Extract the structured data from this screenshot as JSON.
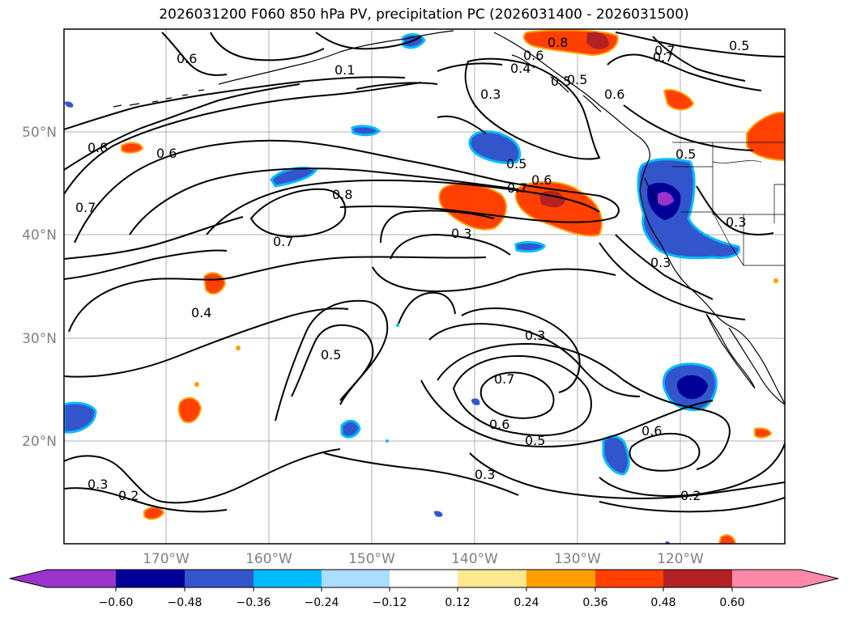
{
  "title": "2026031200 F060 850 hPa PV, precipitation PC (2026031400 - 2026031500)",
  "axes": {
    "lat_labels": [
      "50°N",
      "40°N",
      "30°N",
      "20°N"
    ],
    "lon_labels": [
      "170°W",
      "160°W",
      "150°W",
      "140°W",
      "130°W",
      "120°W"
    ]
  },
  "contour_labels": [
    "0.6",
    "0.1",
    "0.8",
    "0.6",
    "0.7",
    "0.3",
    "0.4",
    "0.5",
    "0.6",
    "0.7",
    "0.5",
    "0.6",
    "0.7",
    "0.8",
    "0.7",
    "0.3",
    "0.5",
    "0.3",
    "0.4",
    "0.5",
    "0.3",
    "0.7",
    "0.6",
    "0.5",
    "0.6",
    "0.3",
    "0.3",
    "0.2",
    "0.2",
    "0.8",
    "0.7",
    "0.5",
    "0.6",
    "0.3",
    "0.5"
  ],
  "colorbar": {
    "ticks": [
      "−0.60",
      "−0.48",
      "−0.36",
      "−0.24",
      "−0.12",
      "0.12",
      "0.24",
      "0.36",
      "0.48",
      "0.60"
    ],
    "colors": [
      "#9933cc",
      "#000099",
      "#3355cc",
      "#00bbff",
      "#aaddff",
      "#ffffff",
      "#ffe890",
      "#ffa000",
      "#ff4000",
      "#b22222",
      "#ff88aa"
    ]
  }
}
